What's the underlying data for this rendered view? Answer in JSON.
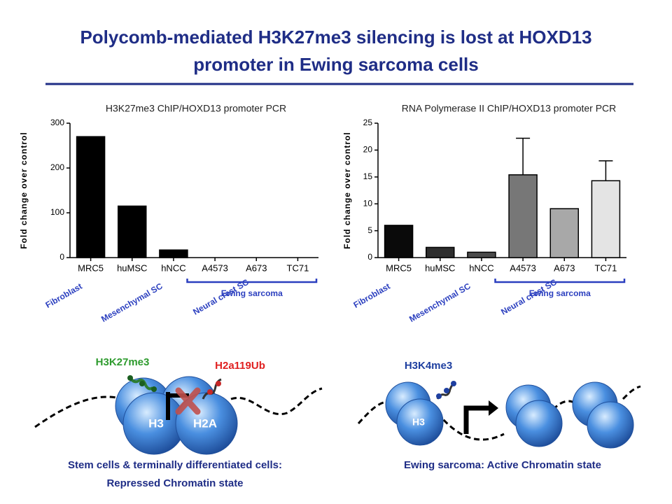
{
  "title_lines": [
    "Polycomb-mediated H3K27me3 silencing is lost at HOXD13",
    "promoter in Ewing sarcoma cells"
  ],
  "chart_data": [
    {
      "type": "bar",
      "title": "H3K27me3 ChIP/HOXD13 promoter PCR",
      "y_label": "Fold change over control",
      "categories": [
        "MRC5",
        "huMSC",
        "hNCC",
        "A4573",
        "A673",
        "TC71"
      ],
      "values": [
        270,
        115,
        17,
        0,
        0,
        0
      ],
      "colors": [
        "#000000",
        "#000000",
        "#000000",
        "#000000",
        "#000000",
        "#000000"
      ],
      "ylim": [
        0,
        300
      ],
      "yticks": [
        0,
        100,
        200,
        300
      ],
      "cell_types": [
        "Fibroblast",
        "Mesenchymal SC",
        "Neural crest SC"
      ],
      "group_label": "Ewing sarcoma"
    },
    {
      "type": "bar",
      "title": "RNA Polymerase II ChIP/HOXD13 promoter PCR",
      "y_label": "Fold change over control",
      "categories": [
        "MRC5",
        "huMSC",
        "hNCC",
        "A4573",
        "A673",
        "TC71"
      ],
      "values": [
        6,
        1.9,
        1,
        15.4,
        9.1,
        14.3
      ],
      "errors": [
        null,
        null,
        null,
        6.8,
        null,
        3.7
      ],
      "colors": [
        "#0a0a0a",
        "#2e2e2e",
        "#4a4a4a",
        "#777777",
        "#a8a8a8",
        "#e4e4e4"
      ],
      "ylim": [
        0,
        25
      ],
      "yticks": [
        0,
        5,
        10,
        15,
        20,
        25
      ],
      "cell_types": [
        "Fibroblast",
        "Mesenchymal SC",
        "Neural crest SC"
      ],
      "group_label": "Ewing sarcoma"
    }
  ],
  "diagrams": [
    {
      "marks": [
        "H3K27me3",
        "H2a119Ub"
      ],
      "histones": [
        "H3",
        "H2A"
      ],
      "caption_lines": [
        "Stem cells & terminally differentiated cells:",
        "Repressed Chromatin state"
      ]
    },
    {
      "marks": [
        "H3K4me3"
      ],
      "histones": [
        "H3"
      ],
      "caption_lines": [
        "Ewing sarcoma: Active Chromatin state"
      ]
    }
  ]
}
